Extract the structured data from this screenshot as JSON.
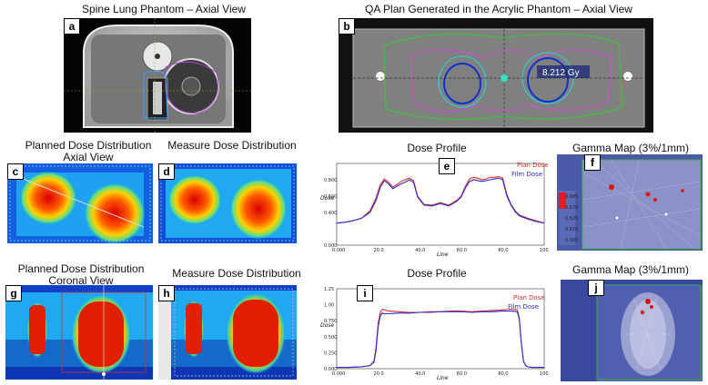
{
  "titles": {
    "a": "Spine Lung Phantom – Axial View",
    "b": "QA Plan Generated in the Acrylic Phantom – Axial View",
    "c_line1": "Planned Dose Distribution",
    "c_line2": "Axial View",
    "d": "Measure Dose Distribution",
    "e": "Dose Profile",
    "f": "Gamma Map (3%/1mm)",
    "g_line1": "Planned Dose Distribution",
    "g_line2": "Coronal View",
    "h": "Measure Dose Distribution",
    "i": "Dose Profile",
    "j": "Gamma Map (3%/1mm)"
  },
  "letters": {
    "a": "a",
    "b": "b",
    "c": "c",
    "d": "d",
    "e": "e",
    "f": "f",
    "g": "g",
    "h": "h",
    "i": "i",
    "j": "j"
  },
  "panel_b": {
    "dose_label": "8.212 Gy"
  },
  "gamma_scale": {
    "values": [
      "0.985",
      "0.675",
      "0.625",
      "0.510",
      "0.000"
    ]
  },
  "chart_data": [
    {
      "type": "line",
      "title": "Dose Profile",
      "xlabel": "Line",
      "ylabel": "Dose",
      "xlim": [
        0,
        100
      ],
      "ylim": [
        0,
        1.0
      ],
      "x_ticks": [
        "0.000",
        "20.0",
        "40.0",
        "60.0",
        "80.0",
        "100."
      ],
      "y_ticks": [
        "0.000",
        "0.400",
        "0.600",
        "0.800"
      ],
      "y_tick_values": [
        0,
        0.4,
        0.6,
        0.8
      ],
      "legend": [
        "Plan Dose",
        "Film Dose"
      ],
      "legend_position": "top-right",
      "series": [
        {
          "name": "Plan Dose",
          "color": "#d03030",
          "x": [
            0,
            4,
            8,
            12,
            16,
            19,
            21,
            23,
            25,
            27,
            29,
            31,
            33,
            35,
            37,
            39,
            42,
            46,
            50,
            54,
            56,
            58,
            60,
            62,
            64,
            66,
            68,
            70,
            72,
            74,
            76,
            78,
            80,
            82,
            84,
            86,
            88,
            92,
            96,
            100
          ],
          "y": [
            0.27,
            0.28,
            0.3,
            0.33,
            0.42,
            0.58,
            0.74,
            0.81,
            0.77,
            0.71,
            0.74,
            0.78,
            0.8,
            0.82,
            0.79,
            0.6,
            0.5,
            0.49,
            0.52,
            0.49,
            0.52,
            0.55,
            0.6,
            0.72,
            0.81,
            0.83,
            0.82,
            0.8,
            0.81,
            0.83,
            0.83,
            0.84,
            0.82,
            0.62,
            0.5,
            0.42,
            0.37,
            0.33,
            0.3,
            0.27
          ]
        },
        {
          "name": "Film Dose",
          "color": "#2b2bd0",
          "x": [
            0,
            4,
            8,
            12,
            16,
            19,
            21,
            23,
            25,
            27,
            29,
            31,
            33,
            35,
            37,
            39,
            42,
            46,
            50,
            54,
            56,
            58,
            60,
            62,
            64,
            66,
            68,
            70,
            72,
            74,
            76,
            78,
            80,
            82,
            84,
            86,
            88,
            92,
            96,
            100
          ],
          "y": [
            0.27,
            0.28,
            0.3,
            0.33,
            0.4,
            0.55,
            0.71,
            0.79,
            0.75,
            0.69,
            0.72,
            0.75,
            0.77,
            0.8,
            0.77,
            0.59,
            0.49,
            0.48,
            0.51,
            0.48,
            0.51,
            0.54,
            0.59,
            0.7,
            0.78,
            0.8,
            0.79,
            0.78,
            0.79,
            0.8,
            0.81,
            0.82,
            0.8,
            0.6,
            0.49,
            0.41,
            0.36,
            0.32,
            0.29,
            0.27
          ]
        }
      ]
    },
    {
      "type": "line",
      "title": "Dose Profile",
      "xlabel": "Line",
      "ylabel": "Dose",
      "xlim": [
        0,
        100
      ],
      "ylim": [
        0,
        1.25
      ],
      "x_ticks": [
        "0.000",
        "20.0",
        "40.0",
        "60.0",
        "80.0",
        "100."
      ],
      "y_ticks": [
        "0.000",
        "0.250",
        "0.500",
        "0.750",
        "1.00",
        "1.25"
      ],
      "y_tick_values": [
        0,
        0.25,
        0.5,
        0.75,
        1.0,
        1.25
      ],
      "legend": [
        "Plan Dose",
        "Film Dose"
      ],
      "legend_position": "top-right",
      "series": [
        {
          "name": "Plan Dose",
          "color": "#d03030",
          "x": [
            0,
            6,
            12,
            16,
            18,
            19,
            20,
            21,
            22,
            23,
            25,
            30,
            35,
            40,
            45,
            50,
            55,
            60,
            65,
            70,
            75,
            80,
            84,
            87,
            88,
            89,
            90,
            91,
            92,
            94,
            100
          ],
          "y": [
            0.02,
            0.02,
            0.03,
            0.05,
            0.12,
            0.35,
            0.72,
            0.88,
            0.93,
            0.92,
            0.9,
            0.89,
            0.88,
            0.88,
            0.89,
            0.89,
            0.9,
            0.9,
            0.89,
            0.9,
            0.91,
            0.92,
            0.93,
            0.92,
            0.8,
            0.4,
            0.12,
            0.05,
            0.03,
            0.02,
            0.02
          ]
        },
        {
          "name": "Film Dose",
          "color": "#2b2bd0",
          "x": [
            0,
            6,
            12,
            16,
            18,
            19,
            20,
            21,
            22,
            23,
            25,
            30,
            35,
            40,
            45,
            50,
            55,
            60,
            65,
            70,
            75,
            80,
            84,
            87,
            88,
            89,
            90,
            91,
            92,
            94,
            100
          ],
          "y": [
            0.02,
            0.02,
            0.03,
            0.05,
            0.1,
            0.3,
            0.66,
            0.83,
            0.87,
            0.86,
            0.86,
            0.87,
            0.87,
            0.88,
            0.88,
            0.89,
            0.89,
            0.89,
            0.88,
            0.89,
            0.89,
            0.9,
            0.9,
            0.89,
            0.78,
            0.4,
            0.12,
            0.05,
            0.03,
            0.02,
            0.02
          ]
        }
      ]
    }
  ]
}
